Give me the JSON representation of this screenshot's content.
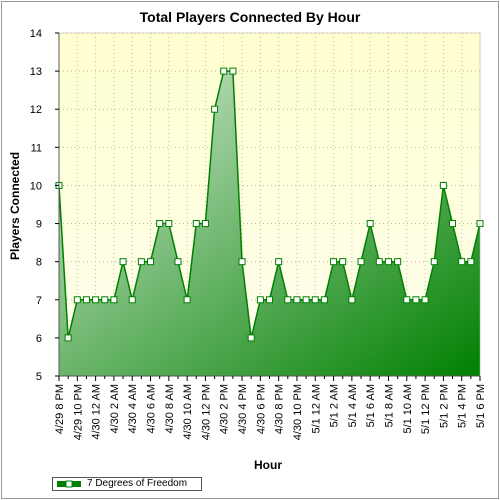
{
  "colors": {
    "plot_bg_top": "#ffffd0",
    "plot_bg_bottom": "#fffff0",
    "area_light": "#d6ead6",
    "area_dark": "#008000",
    "line": "#008000",
    "marker_fill": "#ffffff",
    "grid": "#bdbd9a"
  },
  "chart_data": {
    "type": "area",
    "title": "Total Players Connected By Hour",
    "xlabel": "Hour",
    "ylabel": "Players Connected",
    "ylim": [
      5,
      14
    ],
    "yticks": [
      5,
      6,
      7,
      8,
      9,
      10,
      11,
      12,
      13,
      14
    ],
    "grid": true,
    "legend_position": "bottom-left",
    "x_tick_labels": [
      "4/29 8 PM",
      "4/29 10 PM",
      "4/30 12 AM",
      "4/30 2 AM",
      "4/30 4 AM",
      "4/30 6 AM",
      "4/30 8 AM",
      "4/30 10 AM",
      "4/30 12 PM",
      "4/30 2 PM",
      "4/30 4 PM",
      "4/30 6 PM",
      "4/30 8 PM",
      "4/30 10 PM",
      "5/1 12 AM",
      "5/1 2 AM",
      "5/1 4 AM",
      "5/1 6 AM",
      "5/1 8 AM",
      "5/1 10 AM",
      "5/1 12 PM",
      "5/1 2 PM",
      "5/1 4 PM",
      "5/1 6 PM"
    ],
    "series": [
      {
        "name": "7 Degrees of Freedom",
        "values": [
          10,
          6,
          7,
          7,
          7,
          7,
          7,
          8,
          7,
          8,
          8,
          9,
          9,
          8,
          7,
          9,
          9,
          12,
          13,
          13,
          8,
          6,
          7,
          7,
          8,
          7,
          7,
          7,
          7,
          7,
          8,
          8,
          7,
          8,
          9,
          8,
          8,
          8,
          7,
          7,
          7,
          8,
          10,
          9,
          8,
          8,
          9
        ]
      }
    ]
  }
}
